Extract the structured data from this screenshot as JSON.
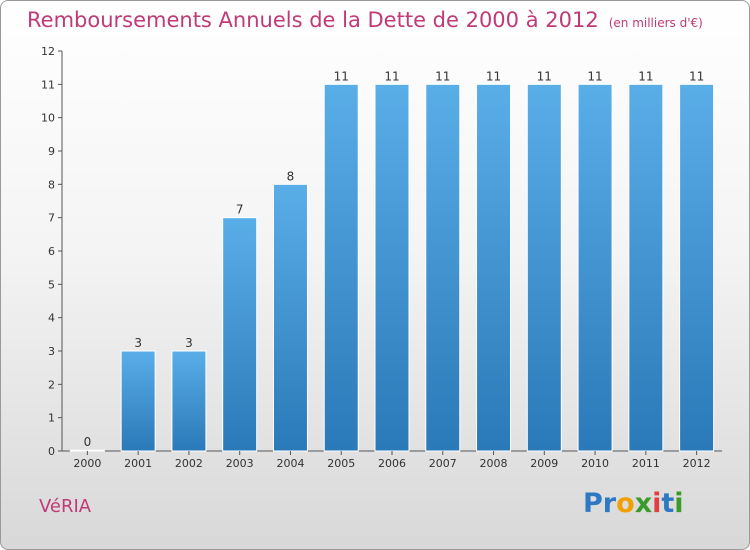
{
  "title": "Remboursements Annuels de la Dette de 2000 à 2012",
  "unit": "(en milliers d'€)",
  "commune": "VéRIA",
  "logo": {
    "text": "Proxiti",
    "letters": [
      {
        "ch": "P",
        "color": "#2f78c4"
      },
      {
        "ch": "r",
        "color": "#2f78c4"
      },
      {
        "ch": "o",
        "color": "#f0a000"
      },
      {
        "ch": "x",
        "color": "#3a9a2a"
      },
      {
        "ch": "i",
        "color": "#e04040"
      },
      {
        "ch": "t",
        "color": "#2f78c4"
      },
      {
        "ch": "i",
        "color": "#3a9a2a"
      }
    ]
  },
  "colors": {
    "title": "#c03a78",
    "bar_top": "#5aaee8",
    "bar_bottom": "#2a79b8",
    "bar_stroke": "#ffffff"
  },
  "chart_data": {
    "type": "bar",
    "categories": [
      "2000",
      "2001",
      "2002",
      "2003",
      "2004",
      "2005",
      "2006",
      "2007",
      "2008",
      "2009",
      "2010",
      "2011",
      "2012"
    ],
    "values": [
      0,
      3,
      3,
      7,
      8,
      11,
      11,
      11,
      11,
      11,
      11,
      11,
      11
    ],
    "data_labels": [
      "0",
      "3",
      "3",
      "7",
      "8",
      "11",
      "11",
      "11",
      "11",
      "11",
      "11",
      "11",
      "11"
    ],
    "yticks": [
      "0",
      "1",
      "2",
      "3",
      "4",
      "5",
      "6",
      "7",
      "8",
      "9",
      "10",
      "11",
      "12"
    ],
    "ylim": [
      0,
      12
    ],
    "grid": false,
    "legend": "none"
  }
}
